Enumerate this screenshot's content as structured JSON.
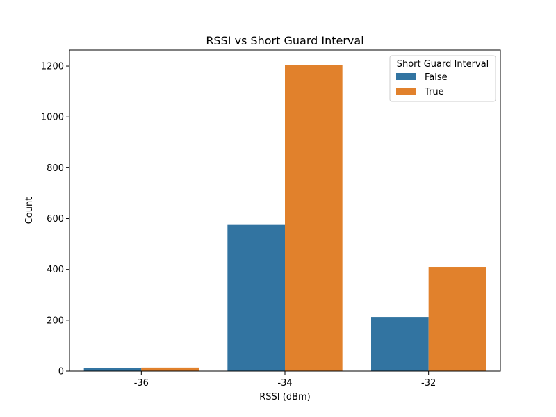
{
  "chart_data": {
    "type": "bar",
    "title": "RSSI vs Short Guard Interval",
    "xlabel": "RSSI (dBm)",
    "ylabel": "Count",
    "categories": [
      "-36",
      "-34",
      "-32"
    ],
    "series": [
      {
        "name": "False",
        "values": [
          11,
          575,
          213
        ],
        "color": "#3274a1"
      },
      {
        "name": "True",
        "values": [
          14,
          1204,
          410
        ],
        "color": "#e1812c"
      }
    ],
    "ylim": [
      0,
      1263
    ],
    "yticks": [
      0,
      200,
      400,
      600,
      800,
      1000,
      1200
    ],
    "legend": {
      "title": "Short Guard Interval",
      "placement": "top-right"
    },
    "grid": false
  }
}
